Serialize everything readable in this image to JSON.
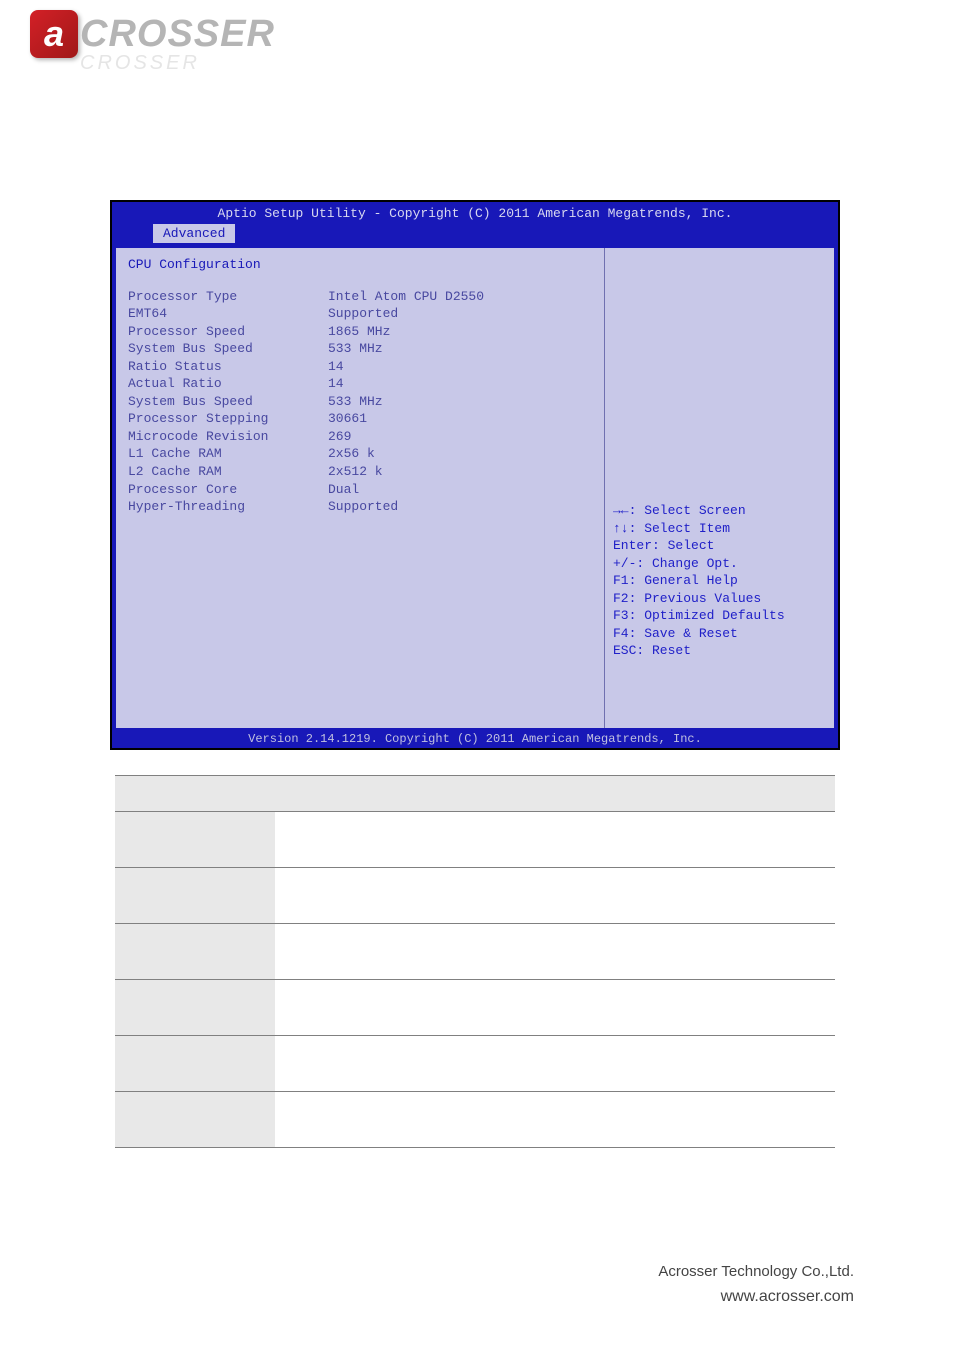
{
  "logo": {
    "first_letter": "a",
    "rest": "CROSSER",
    "shadow": "CROSSER"
  },
  "bios": {
    "header": "Aptio Setup Utility - Copyright (C) 2011 American Megatrends, Inc.",
    "tab": "Advanced",
    "section_title": "CPU Configuration",
    "rows": [
      {
        "label": "Processor Type",
        "value": "Intel Atom CPU D2550"
      },
      {
        "label": "EMT64",
        "value": "Supported"
      },
      {
        "label": "Processor Speed",
        "value": "1865 MHz"
      },
      {
        "label": "System Bus Speed",
        "value": "533 MHz"
      },
      {
        "label": "Ratio Status",
        "value": "14"
      },
      {
        "label": "Actual Ratio",
        "value": "14"
      },
      {
        "label": "System Bus Speed",
        "value": "533 MHz"
      },
      {
        "label": "Processor Stepping",
        "value": "30661"
      },
      {
        "label": "Microcode Revision",
        "value": "269"
      },
      {
        "label": "L1 Cache RAM",
        "value": "2x56 k"
      },
      {
        "label": "L2 Cache RAM",
        "value": "2x512 k"
      },
      {
        "label": "Processor Core",
        "value": "Dual"
      },
      {
        "label": "Hyper-Threading",
        "value": "Supported"
      }
    ],
    "help_lines": [
      "→←: Select Screen",
      "↑↓: Select Item",
      "Enter: Select",
      "+/-: Change Opt.",
      "F1: General Help",
      "F2: Previous Values",
      "F3: Optimized Defaults",
      "F4: Save & Reset",
      "ESC: Reset"
    ],
    "footer": "Version 2.14.1219. Copyright (C) 2011 American Megatrends, Inc.",
    "colors": {
      "frame_bg": "#1818b8",
      "panel_bg": "#c8c8e8",
      "text_dim": "#4848a0",
      "help_text": "#2020c8"
    }
  },
  "table": {
    "headers": [
      "",
      "",
      ""
    ],
    "rows": [
      [
        "",
        "",
        ""
      ],
      [
        "",
        "",
        ""
      ],
      [
        "",
        "",
        ""
      ],
      [
        "",
        "",
        ""
      ],
      [
        "",
        "",
        ""
      ],
      [
        "",
        "",
        ""
      ]
    ]
  },
  "footer": {
    "company": "Acrosser Technology Co.,Ltd.",
    "web": "www.acrosser.com"
  }
}
